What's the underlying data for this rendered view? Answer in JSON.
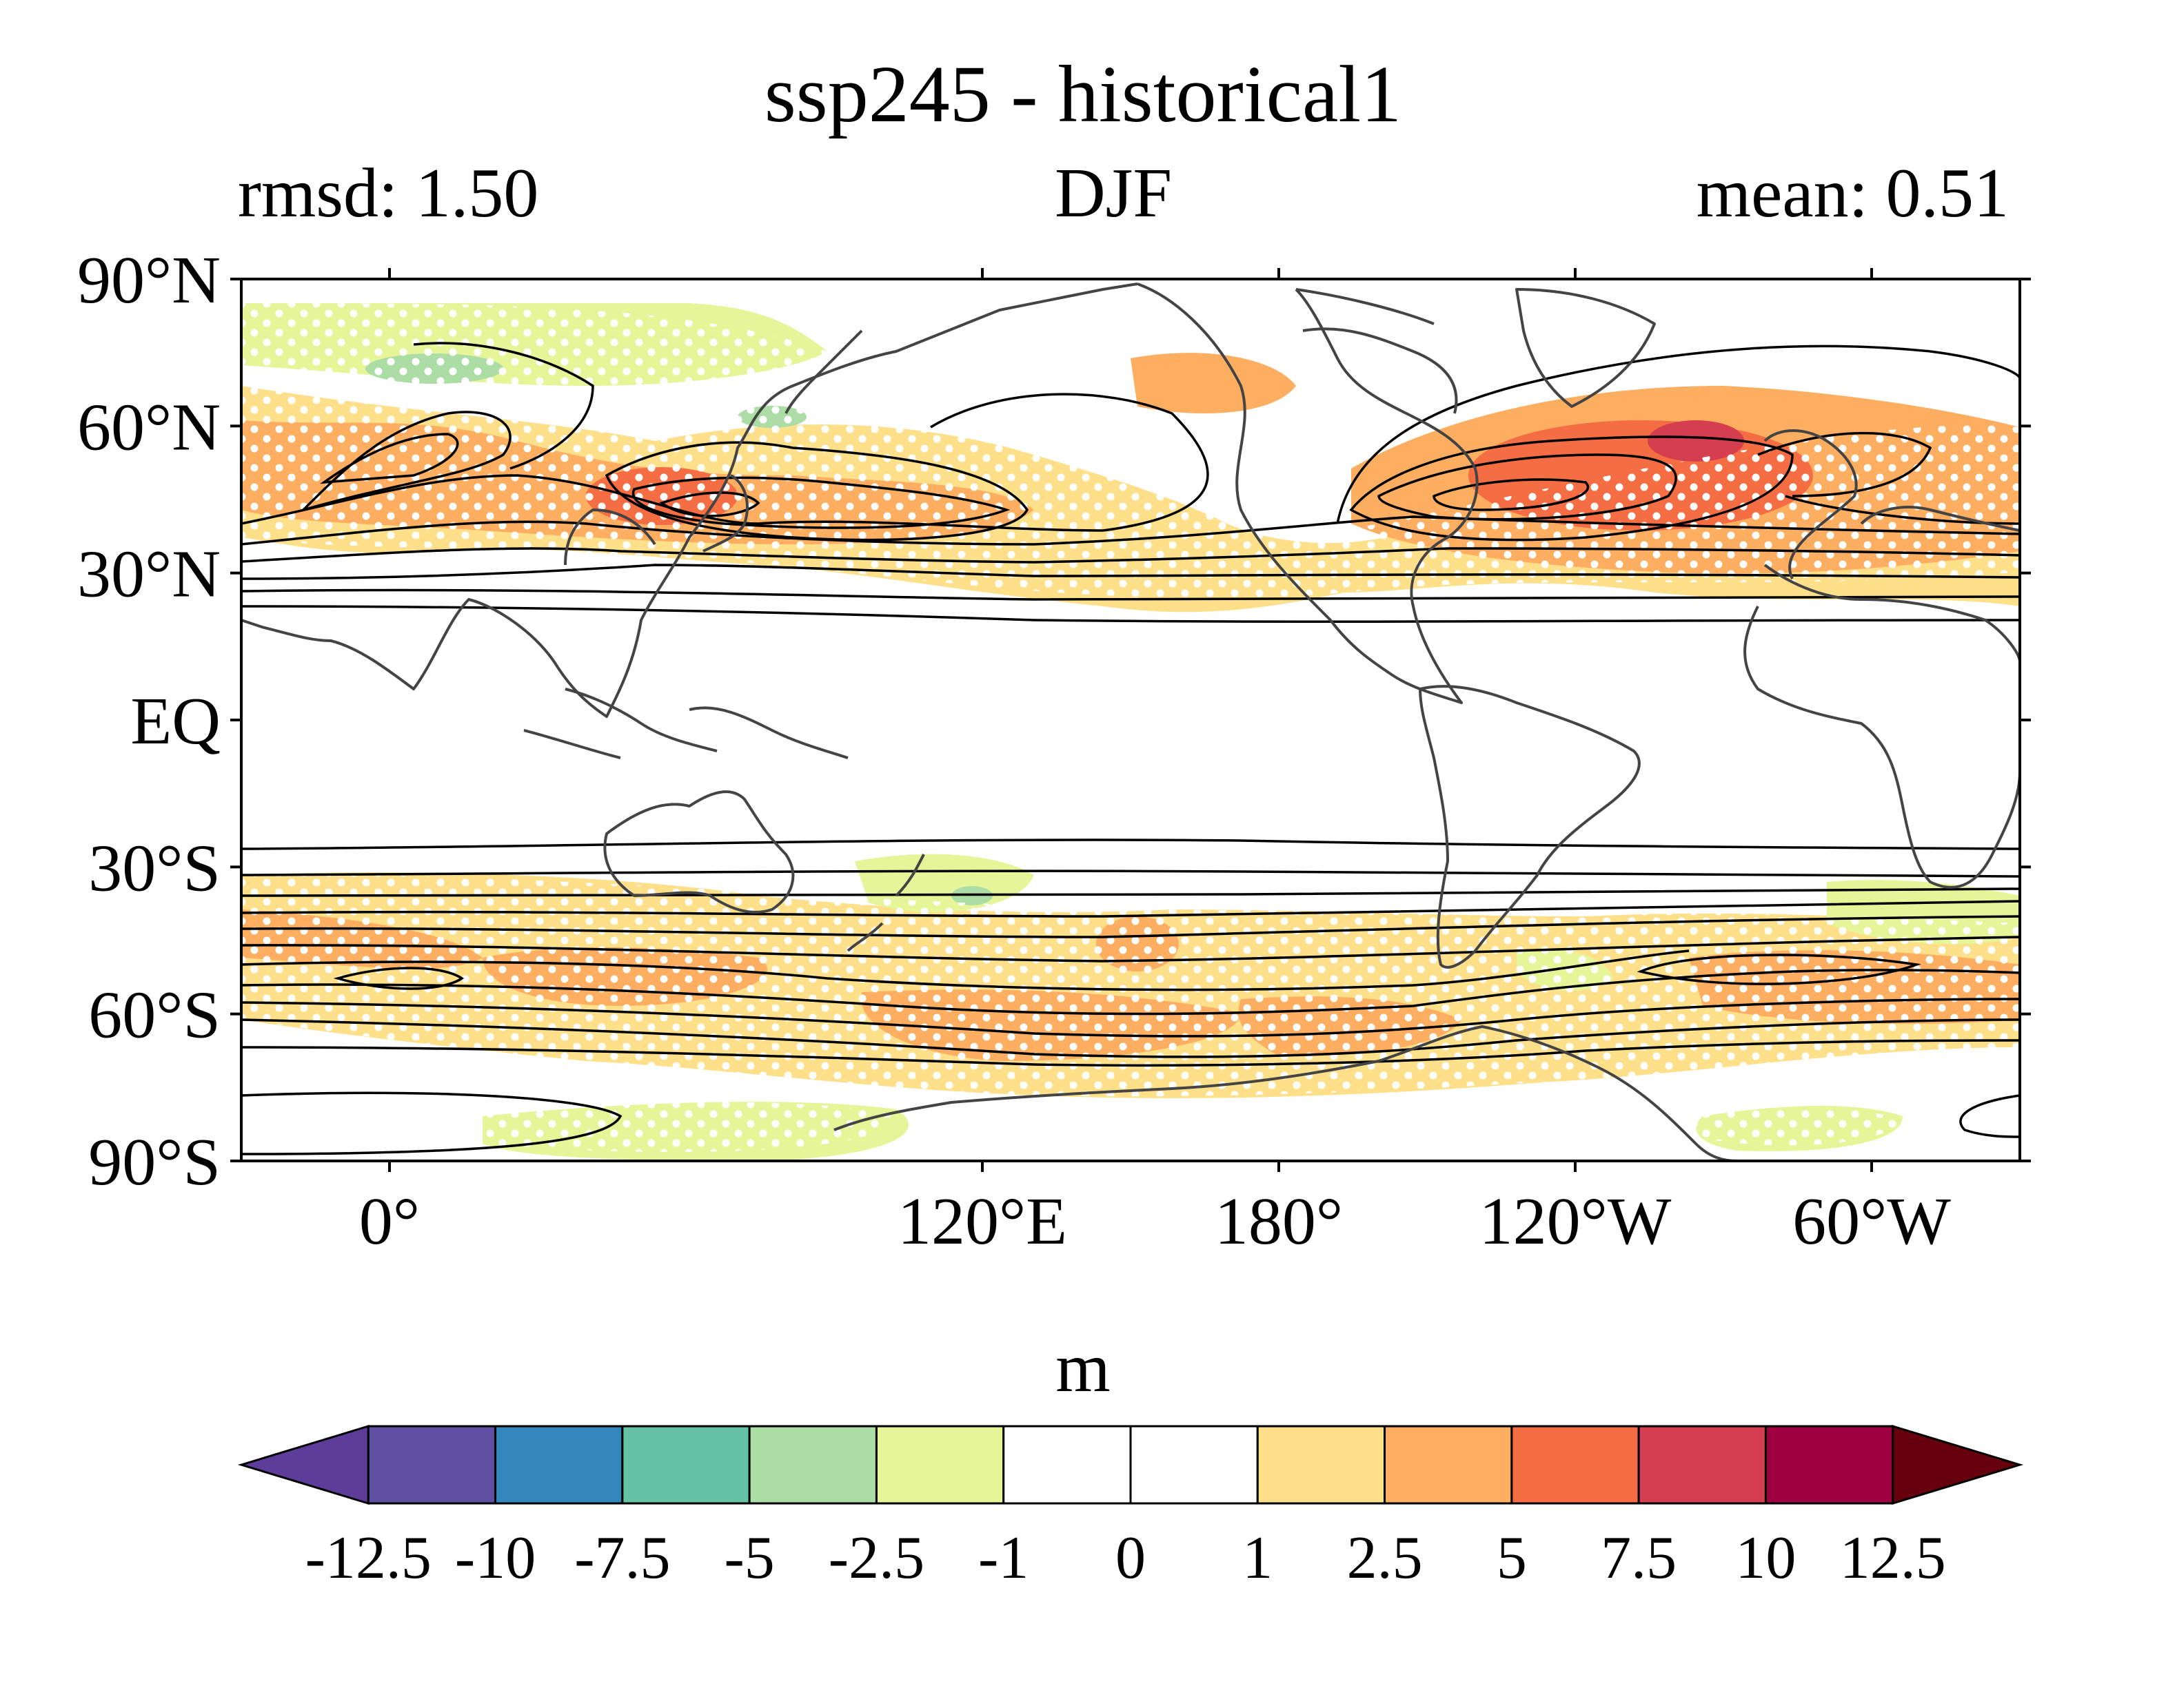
{
  "title": "ssp245 - historical1",
  "left_label": "rmsd: 1.50",
  "center_label": "DJF",
  "right_label": "mean: 0.51",
  "map": {
    "projection": "cylindrical equidistant",
    "central_longitude": 150,
    "lat_range": [
      -90,
      90
    ],
    "lat_ticks": [
      {
        "value": 90,
        "label": "90°N"
      },
      {
        "value": 60,
        "label": "60°N"
      },
      {
        "value": 30,
        "label": "30°N"
      },
      {
        "value": 0,
        "label": "EQ"
      },
      {
        "value": -30,
        "label": "30°S"
      },
      {
        "value": -60,
        "label": "60°S"
      },
      {
        "value": -90,
        "label": "90°S"
      }
    ],
    "lon_ticks": [
      {
        "value": 120,
        "label": "120°E"
      },
      {
        "value": 180,
        "label": "180°"
      },
      {
        "value": 240,
        "label": "120°W"
      },
      {
        "value": 300,
        "label": "60°W"
      },
      {
        "value": 360,
        "label": "0°"
      }
    ],
    "coastline_color": "#444444",
    "contour_color": "#000000",
    "stipple_color": "#ffffff"
  },
  "colorbar": {
    "units": "m",
    "labels": [
      "-12.5",
      "-10",
      "-7.5",
      "-5",
      "-2.5",
      "-1",
      "0",
      "1",
      "2.5",
      "5",
      "7.5",
      "10",
      "12.5"
    ],
    "colors": [
      "#5e3c99",
      "#5e4fa2",
      "#3288bd",
      "#66c2a5",
      "#abdda4",
      "#e6f598",
      "#ffffff",
      "#ffffff",
      "#fee08b",
      "#fdae61",
      "#f46d43",
      "#d53e4f",
      "#9e0142",
      "#67000d"
    ]
  },
  "fields": {
    "anomaly_patches": [
      {
        "lon": 142,
        "lat": 47,
        "rlon": 14,
        "rlat": 8,
        "value": 6
      },
      {
        "lon": 170,
        "lat": 45,
        "rlon": 26,
        "rlat": 7,
        "value": 4
      },
      {
        "lon": 80,
        "lat": 52,
        "rlon": 16,
        "rlat": 8,
        "value": 4
      },
      {
        "lon": 320,
        "lat": 55,
        "rlon": 36,
        "rlat": 10,
        "value": 5
      },
      {
        "lon": 336,
        "lat": 58,
        "rlon": 14,
        "rlat": 6,
        "value": 8
      },
      {
        "lon": 58,
        "lat": 44,
        "rlon": 12,
        "rlat": 5,
        "value": 3
      },
      {
        "lon": 75,
        "lat": 74,
        "rlon": 12,
        "rlat": 5,
        "value": -3
      },
      {
        "lon": 70,
        "lat": -44,
        "rlon": 16,
        "rlat": 5,
        "value": 4
      },
      {
        "lon": 134,
        "lat": -57,
        "rlon": 20,
        "rlat": 7,
        "value": 4
      },
      {
        "lon": 205,
        "lat": -62,
        "rlon": 28,
        "rlat": 7,
        "value": 4
      },
      {
        "lon": 276,
        "lat": -65,
        "rlon": 20,
        "rlat": 6,
        "value": 4
      },
      {
        "lon": 20,
        "lat": -57,
        "rlon": 22,
        "rlat": 6,
        "value": 3
      },
      {
        "lon": 182,
        "lat": -38,
        "rlon": 14,
        "rlat": 6,
        "value": -2
      },
      {
        "lon": 155,
        "lat": -82,
        "rlon": 20,
        "rlat": 4,
        "value": -2
      },
      {
        "lon": 5,
        "lat": -82,
        "rlon": 14,
        "rlat": 4,
        "value": -2
      }
    ]
  }
}
